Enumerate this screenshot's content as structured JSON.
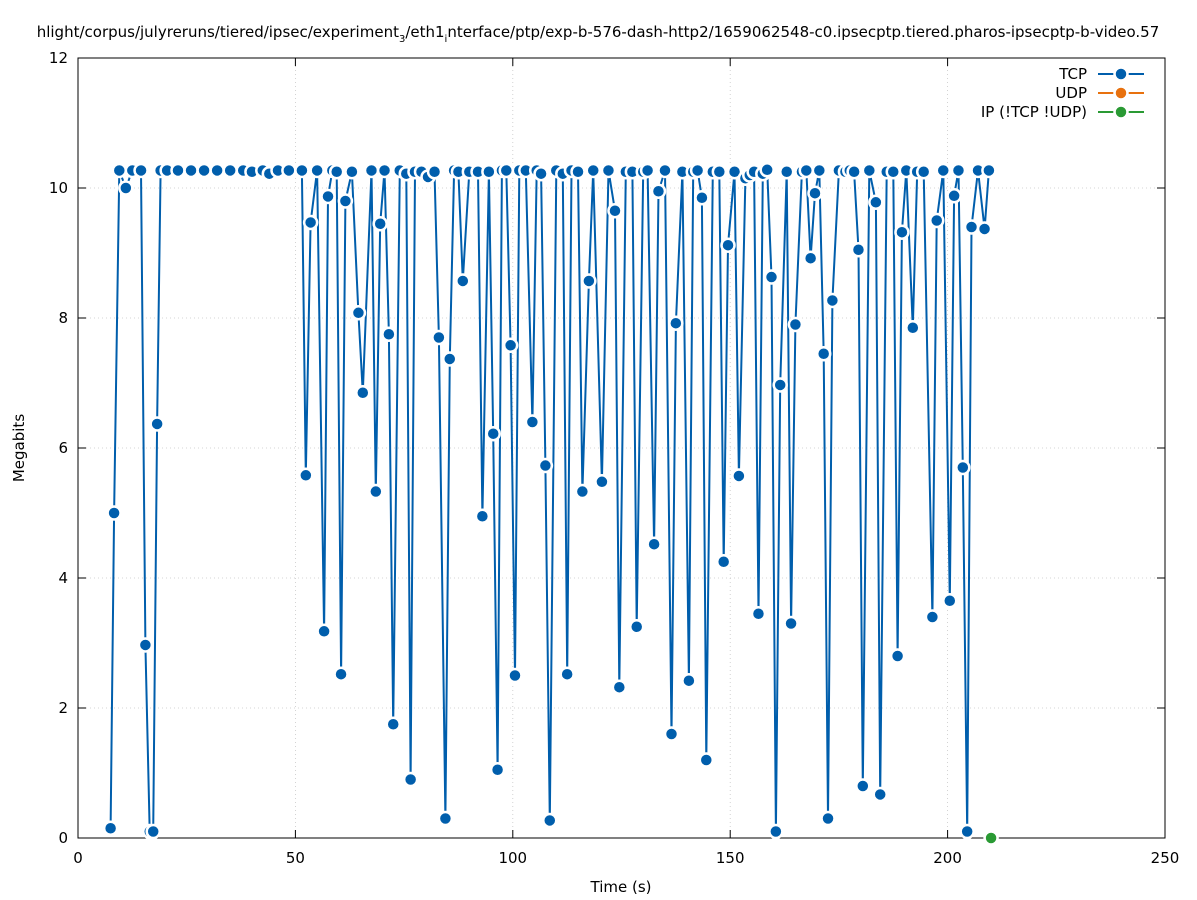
{
  "chart_data": {
    "type": "line",
    "title": "hlight/corpus/julyreruns/tiered/ipsec/experiment_3/eth1_interface/ptp/exp-b-576-dash-http2/1659062548-c0.ipsecptp.tiered.pharos-ipsecptp-b-video.57",
    "title_prefix": "hlight/corpus/julyreruns/tiered/ipsec/experiment",
    "title_sub1": "3",
    "title_mid": "/eth1",
    "title_sub2": "i",
    "title_suffix": "nterface/ptp/exp-b-576-dash-http2/1659062548-c0.ipsecptp.tiered.pharos-ipsecptp-b-video.57",
    "xlabel": "Time (s)",
    "ylabel": "Megabits",
    "xlim": [
      0,
      250
    ],
    "ylim": [
      0,
      12
    ],
    "xticks": [
      0,
      50,
      100,
      150,
      200,
      250
    ],
    "yticks": [
      0,
      2,
      4,
      6,
      8,
      10,
      12
    ],
    "grid": true,
    "legend_position": "top-right",
    "series": [
      {
        "name": "TCP",
        "color": "#005eac",
        "points": [
          [
            7.5,
            0.15
          ],
          [
            8.3,
            5.0
          ],
          [
            9.5,
            10.27
          ],
          [
            11.0,
            10.0
          ],
          [
            12.5,
            10.27
          ],
          [
            14.5,
            10.27
          ],
          [
            15.5,
            2.97
          ],
          [
            16.5,
            0.1
          ],
          [
            17.3,
            0.1
          ],
          [
            18.2,
            6.37
          ],
          [
            19.0,
            10.27
          ],
          [
            20.5,
            10.27
          ],
          [
            23.0,
            10.27
          ],
          [
            26.0,
            10.27
          ],
          [
            29.0,
            10.27
          ],
          [
            32.0,
            10.27
          ],
          [
            35.0,
            10.27
          ],
          [
            38.0,
            10.27
          ],
          [
            40.0,
            10.25
          ],
          [
            42.5,
            10.27
          ],
          [
            44.0,
            10.22
          ],
          [
            46.0,
            10.27
          ],
          [
            48.5,
            10.27
          ],
          [
            51.5,
            10.27
          ],
          [
            52.4,
            5.58
          ],
          [
            53.5,
            9.47
          ],
          [
            55.0,
            10.27
          ],
          [
            56.6,
            3.18
          ],
          [
            57.5,
            9.87
          ],
          [
            58.5,
            10.27
          ],
          [
            59.5,
            10.25
          ],
          [
            60.5,
            2.52
          ],
          [
            61.5,
            9.8
          ],
          [
            63.0,
            10.25
          ],
          [
            64.5,
            8.08
          ],
          [
            65.5,
            6.85
          ],
          [
            67.5,
            10.27
          ],
          [
            68.5,
            5.33
          ],
          [
            69.5,
            9.45
          ],
          [
            70.5,
            10.27
          ],
          [
            71.5,
            7.75
          ],
          [
            72.5,
            1.75
          ],
          [
            74.0,
            10.27
          ],
          [
            75.5,
            10.22
          ],
          [
            76.5,
            0.9
          ],
          [
            77.5,
            10.25
          ],
          [
            79.0,
            10.25
          ],
          [
            80.5,
            10.17
          ],
          [
            82.0,
            10.25
          ],
          [
            83.0,
            7.7
          ],
          [
            84.5,
            0.3
          ],
          [
            85.5,
            7.37
          ],
          [
            86.5,
            10.27
          ],
          [
            87.5,
            10.25
          ],
          [
            88.5,
            8.57
          ],
          [
            90.0,
            10.25
          ],
          [
            92.0,
            10.25
          ],
          [
            93.0,
            4.95
          ],
          [
            94.5,
            10.25
          ],
          [
            95.5,
            6.22
          ],
          [
            96.5,
            1.05
          ],
          [
            97.5,
            10.27
          ],
          [
            98.5,
            10.27
          ],
          [
            99.5,
            7.58
          ],
          [
            100.5,
            2.5
          ],
          [
            101.5,
            10.27
          ],
          [
            103.0,
            10.27
          ],
          [
            104.5,
            6.4
          ],
          [
            105.5,
            10.27
          ],
          [
            106.5,
            10.22
          ],
          [
            107.5,
            5.73
          ],
          [
            108.5,
            0.27
          ],
          [
            110.0,
            10.27
          ],
          [
            111.5,
            10.22
          ],
          [
            112.5,
            2.52
          ],
          [
            113.5,
            10.27
          ],
          [
            115.0,
            10.25
          ],
          [
            116.0,
            5.33
          ],
          [
            117.5,
            8.57
          ],
          [
            118.5,
            10.27
          ],
          [
            120.5,
            5.48
          ],
          [
            122.0,
            10.27
          ],
          [
            123.5,
            9.65
          ],
          [
            124.5,
            2.32
          ],
          [
            126.0,
            10.25
          ],
          [
            127.5,
            10.25
          ],
          [
            128.5,
            3.25
          ],
          [
            130.0,
            10.25
          ],
          [
            131.0,
            10.27
          ],
          [
            132.5,
            4.52
          ],
          [
            133.5,
            9.95
          ],
          [
            135.0,
            10.27
          ],
          [
            136.5,
            1.6
          ],
          [
            137.5,
            7.92
          ],
          [
            139.0,
            10.25
          ],
          [
            140.5,
            2.42
          ],
          [
            141.5,
            10.25
          ],
          [
            142.5,
            10.27
          ],
          [
            143.5,
            9.85
          ],
          [
            144.5,
            1.2
          ],
          [
            146.0,
            10.25
          ],
          [
            147.5,
            10.25
          ],
          [
            148.5,
            4.25
          ],
          [
            149.5,
            9.12
          ],
          [
            151.0,
            10.25
          ],
          [
            152.0,
            5.57
          ],
          [
            153.5,
            10.15
          ],
          [
            154.5,
            10.2
          ],
          [
            155.5,
            10.25
          ],
          [
            156.5,
            3.45
          ],
          [
            157.5,
            10.22
          ],
          [
            158.5,
            10.28
          ],
          [
            159.5,
            8.63
          ],
          [
            160.5,
            0.1
          ],
          [
            161.5,
            6.97
          ],
          [
            163.0,
            10.25
          ],
          [
            164.0,
            3.3
          ],
          [
            165.0,
            7.9
          ],
          [
            166.5,
            10.25
          ],
          [
            167.5,
            10.27
          ],
          [
            168.5,
            8.92
          ],
          [
            169.5,
            9.92
          ],
          [
            170.5,
            10.27
          ],
          [
            171.5,
            7.45
          ],
          [
            172.5,
            0.3
          ],
          [
            173.5,
            8.27
          ],
          [
            175.0,
            10.27
          ],
          [
            176.5,
            10.25
          ],
          [
            177.5,
            10.27
          ],
          [
            178.5,
            10.25
          ],
          [
            179.5,
            9.05
          ],
          [
            180.5,
            0.8
          ],
          [
            182.0,
            10.27
          ],
          [
            183.5,
            9.78
          ],
          [
            184.5,
            0.67
          ],
          [
            186.0,
            10.25
          ],
          [
            187.5,
            10.25
          ],
          [
            188.5,
            2.8
          ],
          [
            189.5,
            9.32
          ],
          [
            190.5,
            10.27
          ],
          [
            192.0,
            7.85
          ],
          [
            193.0,
            10.25
          ],
          [
            194.5,
            10.25
          ],
          [
            196.5,
            3.4
          ],
          [
            197.5,
            9.5
          ],
          [
            199.0,
            10.27
          ],
          [
            200.5,
            3.65
          ],
          [
            201.5,
            9.88
          ],
          [
            202.5,
            10.27
          ],
          [
            203.5,
            5.7
          ],
          [
            204.5,
            0.1
          ],
          [
            205.5,
            9.4
          ],
          [
            207.0,
            10.27
          ],
          [
            208.5,
            9.37
          ],
          [
            209.5,
            10.27
          ]
        ]
      },
      {
        "name": "UDP",
        "color": "#e8710e",
        "points": []
      },
      {
        "name": "IP (!TCP  !UDP)",
        "color": "#2a9a34",
        "points": [
          [
            210.0,
            0.0
          ]
        ]
      }
    ]
  }
}
